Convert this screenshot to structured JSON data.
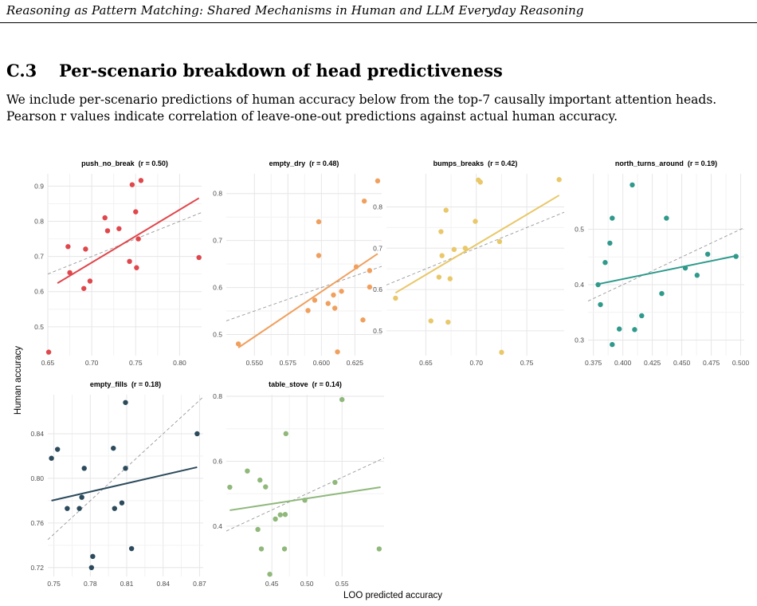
{
  "header": {
    "running_title": "Reasoning as Pattern Matching: Shared Mechanisms in Human and LLM Everyday Reasoning"
  },
  "section": {
    "number": "C.3",
    "title": "Per-scenario breakdown of head predictiveness"
  },
  "body": {
    "paragraph": "We include per-scenario predictions of human accuracy below from the top-7 causally important attention heads. Pearson r values indicate correlation of leave-one-out predictions against actual human accuracy."
  },
  "figure": {
    "xlabel": "LOO predicted accuracy",
    "ylabel": "Human accuracy"
  },
  "chart_data": [
    {
      "type": "scatter",
      "title": "push_no_break  (r = 0.50)",
      "color": "#e0474c",
      "xlim": [
        0.65,
        0.825
      ],
      "ylim": [
        0.418,
        0.935
      ],
      "xticks": [
        0.65,
        0.7,
        0.75,
        0.8
      ],
      "xtick_labels": [
        "0.65",
        "0.70",
        "0.75",
        "0.80"
      ],
      "yticks": [
        0.5,
        0.6,
        0.7,
        0.8,
        0.9
      ],
      "ytick_labels": [
        "0.5",
        "0.6",
        "0.7",
        "0.8",
        "0.9"
      ],
      "fit": [
        [
          0.661,
          0.624
        ],
        [
          0.822,
          0.866
        ]
      ],
      "diagonal": true,
      "points": [
        [
          0.651,
          0.428
        ],
        [
          0.673,
          0.728
        ],
        [
          0.675,
          0.654
        ],
        [
          0.691,
          0.609
        ],
        [
          0.693,
          0.721
        ],
        [
          0.698,
          0.63
        ],
        [
          0.715,
          0.81
        ],
        [
          0.718,
          0.773
        ],
        [
          0.731,
          0.779
        ],
        [
          0.743,
          0.686
        ],
        [
          0.746,
          0.904
        ],
        [
          0.75,
          0.827
        ],
        [
          0.751,
          0.668
        ],
        [
          0.753,
          0.75
        ],
        [
          0.756,
          0.916
        ],
        [
          0.822,
          0.697
        ]
      ]
    },
    {
      "type": "scatter",
      "title": "empty_dry  (r = 0.48)",
      "color": "#f0a05e",
      "xlim": [
        0.529,
        0.645
      ],
      "ylim": [
        0.455,
        0.842
      ],
      "xticks": [
        0.55,
        0.575,
        0.6,
        0.625
      ],
      "xtick_labels": [
        "0.550",
        "0.575",
        "0.600",
        "0.625"
      ],
      "yticks": [
        0.5,
        0.6,
        0.7,
        0.8
      ],
      "ytick_labels": [
        "0.5",
        "0.6",
        "0.7",
        "0.8"
      ],
      "fit": [
        [
          0.538,
          0.472
        ],
        [
          0.642,
          0.672
        ]
      ],
      "diagonal": true,
      "points": [
        [
          0.538,
          0.48
        ],
        [
          0.59,
          0.551
        ],
        [
          0.595,
          0.573
        ],
        [
          0.598,
          0.668
        ],
        [
          0.598,
          0.74
        ],
        [
          0.605,
          0.566
        ],
        [
          0.609,
          0.584
        ],
        [
          0.61,
          0.556
        ],
        [
          0.612,
          0.463
        ],
        [
          0.615,
          0.592
        ],
        [
          0.626,
          0.644
        ],
        [
          0.631,
          0.531
        ],
        [
          0.632,
          0.784
        ],
        [
          0.636,
          0.601
        ],
        [
          0.636,
          0.636
        ],
        [
          0.642,
          0.827
        ]
      ]
    },
    {
      "type": "scatter",
      "title": "bumps_breaks  (r = 0.42)",
      "color": "#e9c86a",
      "xlim": [
        0.611,
        0.787
      ],
      "ylim": [
        0.44,
        0.88
      ],
      "xticks": [
        0.65,
        0.7,
        0.75
      ],
      "xtick_labels": [
        "0.65",
        "0.70",
        "0.75"
      ],
      "yticks": [
        0.5,
        0.6,
        0.7,
        0.8
      ],
      "ytick_labels": [
        "0.5",
        "0.6",
        "0.7",
        "0.8"
      ],
      "fit": [
        [
          0.62,
          0.592
        ],
        [
          0.782,
          0.828
        ]
      ],
      "diagonal": true,
      "points": [
        [
          0.62,
          0.579
        ],
        [
          0.655,
          0.524
        ],
        [
          0.663,
          0.63
        ],
        [
          0.665,
          0.74
        ],
        [
          0.666,
          0.682
        ],
        [
          0.67,
          0.792
        ],
        [
          0.672,
          0.521
        ],
        [
          0.674,
          0.626
        ],
        [
          0.678,
          0.697
        ],
        [
          0.689,
          0.7
        ],
        [
          0.699,
          0.765
        ],
        [
          0.702,
          0.865
        ],
        [
          0.704,
          0.86
        ],
        [
          0.723,
          0.716
        ],
        [
          0.725,
          0.448
        ],
        [
          0.782,
          0.866
        ]
      ]
    },
    {
      "type": "scatter",
      "title": "north_turns_around  (r = 0.19)",
      "color": "#2f9a8c",
      "xlim": [
        0.3705,
        0.503
      ],
      "ylim": [
        0.272,
        0.6
      ],
      "xticks": [
        0.375,
        0.4,
        0.425,
        0.45,
        0.475,
        0.5
      ],
      "xtick_labels": [
        "0.375",
        "0.400",
        "0.425",
        "0.450",
        "0.475",
        "0.500"
      ],
      "yticks": [
        0.3,
        0.4,
        0.5
      ],
      "ytick_labels": [
        "0.3",
        "0.4",
        "0.5"
      ],
      "fit": [
        [
          0.379,
          0.401
        ],
        [
          0.496,
          0.452
        ]
      ],
      "diagonal": true,
      "points": [
        [
          0.379,
          0.4
        ],
        [
          0.381,
          0.364
        ],
        [
          0.385,
          0.44
        ],
        [
          0.389,
          0.475
        ],
        [
          0.391,
          0.52
        ],
        [
          0.391,
          0.292
        ],
        [
          0.397,
          0.32
        ],
        [
          0.408,
          0.58
        ],
        [
          0.41,
          0.319
        ],
        [
          0.416,
          0.344
        ],
        [
          0.433,
          0.384
        ],
        [
          0.437,
          0.52
        ],
        [
          0.453,
          0.43
        ],
        [
          0.463,
          0.417
        ],
        [
          0.472,
          0.455
        ],
        [
          0.496,
          0.451
        ]
      ]
    },
    {
      "type": "scatter",
      "title": "empty_fills  (r = 0.18)",
      "color": "#2b4a5c",
      "xlim": [
        0.745,
        0.873
      ],
      "ylim": [
        0.712,
        0.875
      ],
      "xticks": [
        0.75,
        0.78,
        0.81,
        0.84,
        0.87
      ],
      "xtick_labels": [
        "0.75",
        "0.78",
        "0.81",
        "0.84",
        "0.87"
      ],
      "yticks": [
        0.72,
        0.76,
        0.8,
        0.84
      ],
      "ytick_labels": [
        "0.72",
        "0.76",
        "0.80",
        "0.84"
      ],
      "fit": [
        [
          0.748,
          0.78
        ],
        [
          0.868,
          0.81
        ]
      ],
      "diagonal": true,
      "points": [
        [
          0.748,
          0.818
        ],
        [
          0.753,
          0.826
        ],
        [
          0.761,
          0.773
        ],
        [
          0.771,
          0.773
        ],
        [
          0.773,
          0.783
        ],
        [
          0.775,
          0.809
        ],
        [
          0.781,
          0.72
        ],
        [
          0.782,
          0.73
        ],
        [
          0.799,
          0.827
        ],
        [
          0.8,
          0.773
        ],
        [
          0.806,
          0.778
        ],
        [
          0.809,
          0.809
        ],
        [
          0.809,
          0.868
        ],
        [
          0.814,
          0.737
        ],
        [
          0.868,
          0.84
        ]
      ]
    },
    {
      "type": "scatter",
      "title": "table_stove  (r = 0.14)",
      "color": "#8fb87a",
      "xlim": [
        0.385,
        0.61
      ],
      "ylim": [
        0.245,
        0.805
      ],
      "xticks": [
        0.45,
        0.5,
        0.55
      ],
      "xtick_labels": [
        "0.45",
        "0.50",
        "0.55"
      ],
      "yticks": [
        0.4,
        0.6,
        0.8
      ],
      "ytick_labels": [
        "0.4",
        "0.6",
        "0.8"
      ],
      "fit": [
        [
          0.39,
          0.449
        ],
        [
          0.605,
          0.52
        ]
      ],
      "diagonal": true,
      "points": [
        [
          0.39,
          0.52
        ],
        [
          0.415,
          0.57
        ],
        [
          0.43,
          0.39
        ],
        [
          0.433,
          0.542
        ],
        [
          0.435,
          0.33
        ],
        [
          0.441,
          0.521
        ],
        [
          0.447,
          0.252
        ],
        [
          0.455,
          0.422
        ],
        [
          0.462,
          0.435
        ],
        [
          0.468,
          0.33
        ],
        [
          0.469,
          0.436
        ],
        [
          0.47,
          0.685
        ],
        [
          0.497,
          0.48
        ],
        [
          0.54,
          0.535
        ],
        [
          0.55,
          0.79
        ],
        [
          0.603,
          0.33
        ]
      ]
    }
  ]
}
